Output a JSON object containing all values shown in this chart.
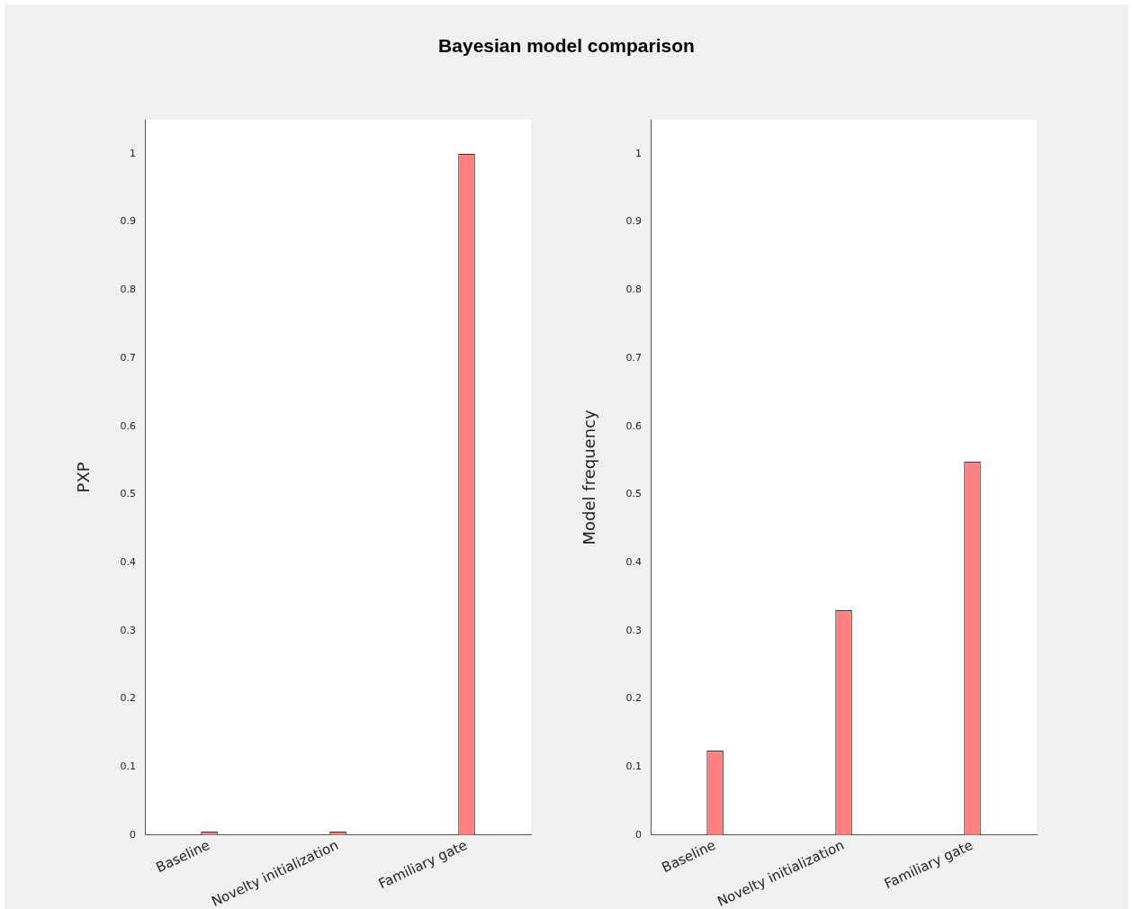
{
  "chart_data": [
    {
      "type": "bar",
      "title": "Bayesian model comparison",
      "ylabel": "PXP",
      "categories": [
        "Baseline",
        "Novelty initialization",
        "Familiary gate"
      ],
      "values": [
        0.005,
        0.005,
        1.0
      ],
      "color": "#ff8080",
      "ylim": [
        0,
        1.05
      ],
      "yticks": [
        0,
        0.1,
        0.2,
        0.3,
        0.4,
        0.5,
        0.6,
        0.7,
        0.8,
        0.9,
        1
      ],
      "grid": false,
      "legend": false
    },
    {
      "type": "bar",
      "ylabel": "Model frequency",
      "categories": [
        "Baseline",
        "Novelty initialization",
        "Familiary gate"
      ],
      "values": [
        0.124,
        0.33,
        0.548
      ],
      "color": "#ff8080",
      "ylim": [
        0,
        1.05
      ],
      "yticks": [
        0,
        0.1,
        0.2,
        0.3,
        0.4,
        0.5,
        0.6,
        0.7,
        0.8,
        0.9,
        1
      ],
      "grid": false,
      "legend": false
    }
  ]
}
